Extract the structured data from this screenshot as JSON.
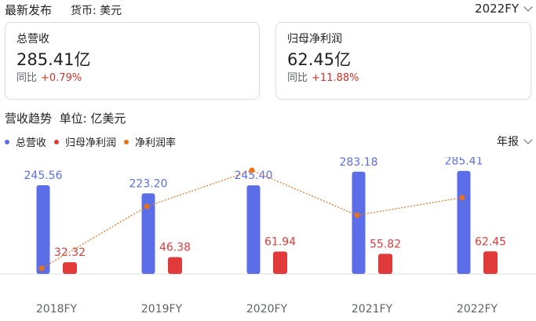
{
  "header": {
    "title": "最新发布",
    "currency": "货币: 美元",
    "fiscal_year": "2022FY"
  },
  "cards": [
    {
      "label": "总营收",
      "value": "285.41亿",
      "yoy_label": "同比",
      "yoy_delta": "+0.79%"
    },
    {
      "label": "归母净利润",
      "value": "62.45亿",
      "yoy_label": "同比",
      "yoy_delta": "+11.88%"
    }
  ],
  "trend": {
    "title": "营收趋势",
    "unit": "单位: 亿美元",
    "period": "年报"
  },
  "colors": {
    "revenue": "#5b6ee8",
    "profit": "#e03a3a",
    "margin": "#e8711a",
    "delta_up": "#d93025"
  },
  "chart_data": {
    "type": "bar",
    "categories": [
      "2018FY",
      "2019FY",
      "2020FY",
      "2021FY",
      "2022FY"
    ],
    "series": [
      {
        "name": "总营收",
        "values": [
          245.56,
          223.2,
          245.4,
          283.18,
          285.41
        ]
      },
      {
        "name": "归母净利润",
        "values": [
          32.32,
          46.38,
          61.94,
          55.82,
          62.45
        ]
      },
      {
        "name": "净利润率",
        "type": "line",
        "values": [
          13.16,
          20.78,
          25.24,
          19.71,
          21.88
        ]
      }
    ],
    "legend_position": "top-left",
    "grid": false
  }
}
